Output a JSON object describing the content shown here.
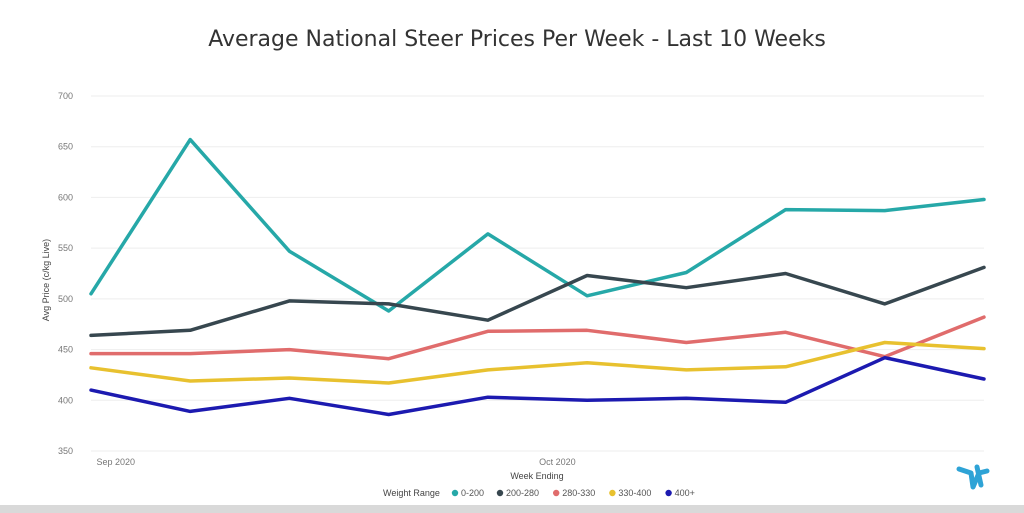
{
  "chart_data": {
    "type": "line",
    "title": "Average National Steer Prices Per Week - Last 10 Weeks",
    "xlabel": "Week Ending",
    "ylabel": "Avg Price (c/kg Live)",
    "ylim": [
      350,
      700
    ],
    "yticks": [
      350,
      400,
      450,
      500,
      550,
      600,
      650,
      700
    ],
    "x_tick_labels": [
      {
        "label": "Sep 2020",
        "index": 0.25
      },
      {
        "label": "Oct 2020",
        "index": 4.7
      }
    ],
    "x_count": 10,
    "grid": true,
    "legend_title": "Weight Range",
    "legend_position": "bottom",
    "series": [
      {
        "name": "0-200",
        "color": "#26a8a8",
        "values": [
          505,
          657,
          547,
          488,
          564,
          503,
          526,
          588,
          587,
          598
        ]
      },
      {
        "name": "200-280",
        "color": "#37474f",
        "values": [
          464,
          469,
          498,
          495,
          479,
          523,
          511,
          525,
          495,
          531
        ]
      },
      {
        "name": "280-330",
        "color": "#e06c6c",
        "values": [
          446,
          446,
          450,
          441,
          468,
          469,
          457,
          467,
          443,
          482
        ]
      },
      {
        "name": "330-400",
        "color": "#e8c12f",
        "values": [
          432,
          419,
          422,
          417,
          430,
          437,
          430,
          433,
          457,
          451
        ]
      },
      {
        "name": "400+",
        "color": "#1c1ab0",
        "values": [
          410,
          389,
          402,
          386,
          403,
          400,
          402,
          398,
          442,
          421
        ]
      }
    ]
  },
  "logo": {
    "name": "brand-logo-icon",
    "color": "#2ea3d6"
  }
}
